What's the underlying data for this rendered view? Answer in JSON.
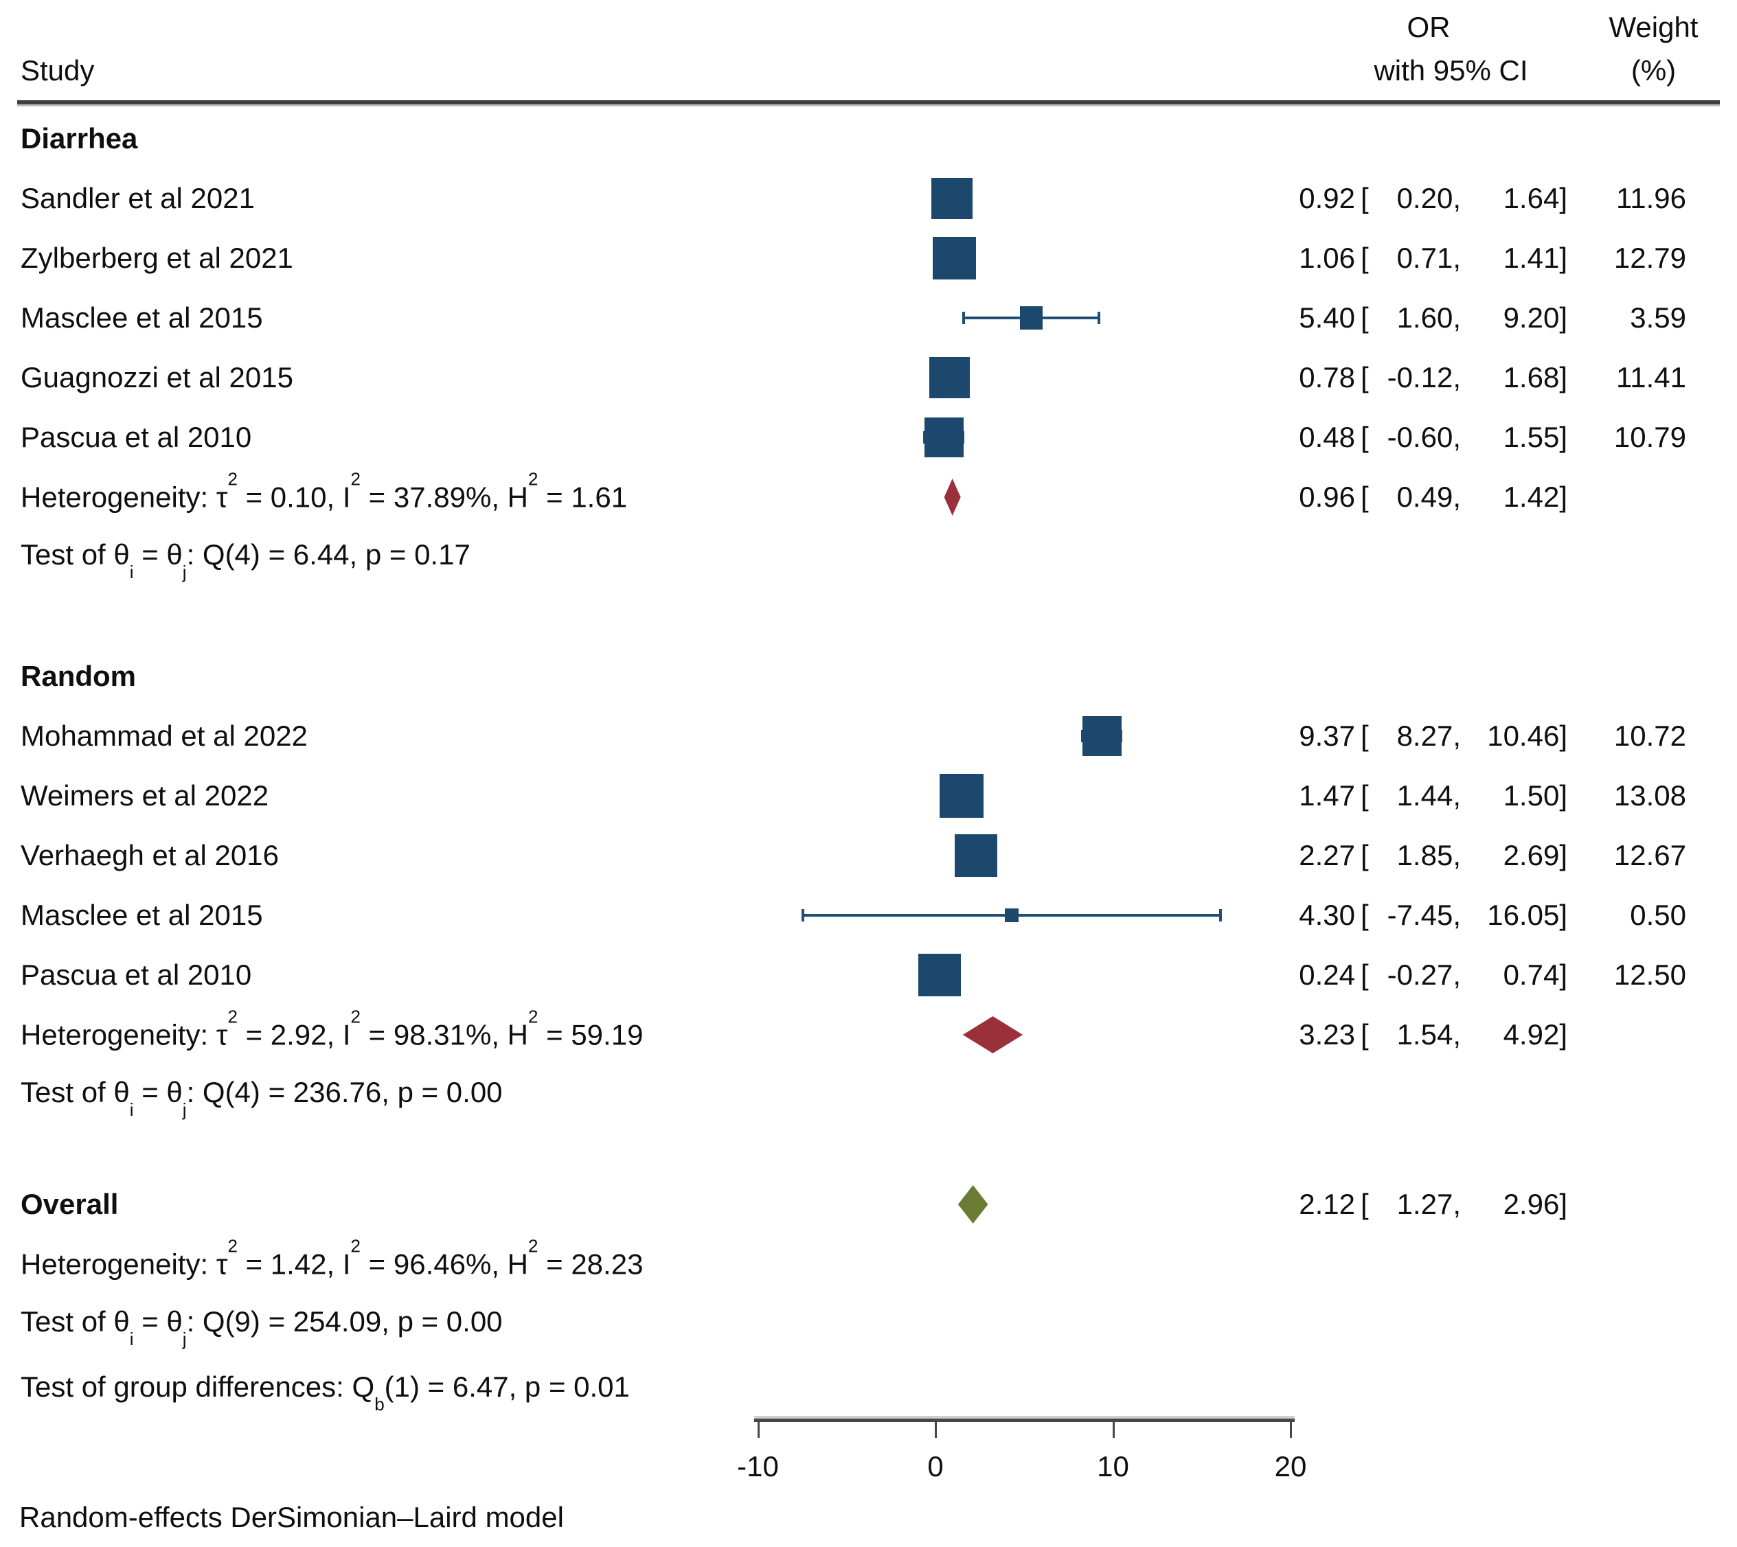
{
  "header": {
    "study": "Study",
    "or_line1": "OR",
    "or_line2": "with 95% CI",
    "weight_line1": "Weight",
    "weight_line2": "(%)"
  },
  "footer": "Random-effects DerSimonian–Laird model",
  "colors": {
    "study_square": "#1d486e",
    "ci_line": "#1f4d74",
    "group_summary_diamond": "#9a313a",
    "overall_summary_diamond": "#6a7c34",
    "text": "#0f0f0f",
    "rule": "#3f3f3f",
    "axis": "#474747"
  },
  "chart_data": {
    "type": "forest",
    "effect_label": "OR",
    "xlabel": "",
    "axis": {
      "min": -10,
      "max": 20,
      "ticks": [
        -10,
        0,
        10,
        20
      ]
    },
    "groups": [
      {
        "label": "Diarrhea",
        "studies": [
          {
            "label": "Sandler et al 2021",
            "est": 0.92,
            "lo": 0.2,
            "hi": 1.64,
            "weight": 11.96
          },
          {
            "label": "Zylberberg et al 2021",
            "est": 1.06,
            "lo": 0.71,
            "hi": 1.41,
            "weight": 12.79
          },
          {
            "label": "Masclee et al 2015",
            "est": 5.4,
            "lo": 1.6,
            "hi": 9.2,
            "weight": 3.59
          },
          {
            "label": "Guagnozzi et al 2015",
            "est": 0.78,
            "lo": -0.12,
            "hi": 1.68,
            "weight": 11.41
          },
          {
            "label": "Pascua et al 2010",
            "est": 0.48,
            "lo": -0.6,
            "hi": 1.55,
            "weight": 10.79
          }
        ],
        "summary": {
          "est": 0.96,
          "lo": 0.49,
          "hi": 1.42
        },
        "heterogeneity": [
          {
            "t": "Heterogeneity: τ"
          },
          {
            "sup": "2"
          },
          {
            "t": " = 0.10, I"
          },
          {
            "sup": "2"
          },
          {
            "t": " = 37.89%, H"
          },
          {
            "sup": "2"
          },
          {
            "t": " = 1.61"
          }
        ],
        "test": [
          {
            "t": "Test of θ"
          },
          {
            "sub": "i"
          },
          {
            "t": " = θ"
          },
          {
            "sub": "j"
          },
          {
            "t": ": Q(4) = 6.44, p = 0.17"
          }
        ]
      },
      {
        "label": "Random",
        "studies": [
          {
            "label": "Mohammad et al 2022",
            "est": 9.37,
            "lo": 8.27,
            "hi": 10.46,
            "weight": 10.72
          },
          {
            "label": "Weimers et al 2022",
            "est": 1.47,
            "lo": 1.44,
            "hi": 1.5,
            "weight": 13.08
          },
          {
            "label": "Verhaegh et al 2016",
            "est": 2.27,
            "lo": 1.85,
            "hi": 2.69,
            "weight": 12.67
          },
          {
            "label": "Masclee et al 2015",
            "est": 4.3,
            "lo": -7.45,
            "hi": 16.05,
            "weight": 0.5
          },
          {
            "label": "Pascua et al 2010",
            "est": 0.24,
            "lo": -0.27,
            "hi": 0.74,
            "weight": 12.5
          }
        ],
        "summary": {
          "est": 3.23,
          "lo": 1.54,
          "hi": 4.92
        },
        "heterogeneity": [
          {
            "t": "Heterogeneity: τ"
          },
          {
            "sup": "2"
          },
          {
            "t": " = 2.92, I"
          },
          {
            "sup": "2"
          },
          {
            "t": " = 98.31%, H"
          },
          {
            "sup": "2"
          },
          {
            "t": " = 59.19"
          }
        ],
        "test": [
          {
            "t": "Test of θ"
          },
          {
            "sub": "i"
          },
          {
            "t": " = θ"
          },
          {
            "sub": "j"
          },
          {
            "t": ": Q(4) = 236.76, p = 0.00"
          }
        ]
      }
    ],
    "overall": {
      "label": "Overall",
      "summary": {
        "est": 2.12,
        "lo": 1.27,
        "hi": 2.96
      },
      "heterogeneity": [
        {
          "t": "Heterogeneity: τ"
        },
        {
          "sup": "2"
        },
        {
          "t": " = 1.42, I"
        },
        {
          "sup": "2"
        },
        {
          "t": " = 96.46%, H"
        },
        {
          "sup": "2"
        },
        {
          "t": " = 28.23"
        }
      ],
      "test": [
        {
          "t": "Test of θ"
        },
        {
          "sub": "i"
        },
        {
          "t": " = θ"
        },
        {
          "sub": "j"
        },
        {
          "t": ": Q(9) = 254.09, p = 0.00"
        }
      ]
    },
    "group_difference": [
      {
        "t": "Test of group differences: Q"
      },
      {
        "sub": "b"
      },
      {
        "t": "(1) = 6.47, p = 0.01"
      }
    ]
  }
}
